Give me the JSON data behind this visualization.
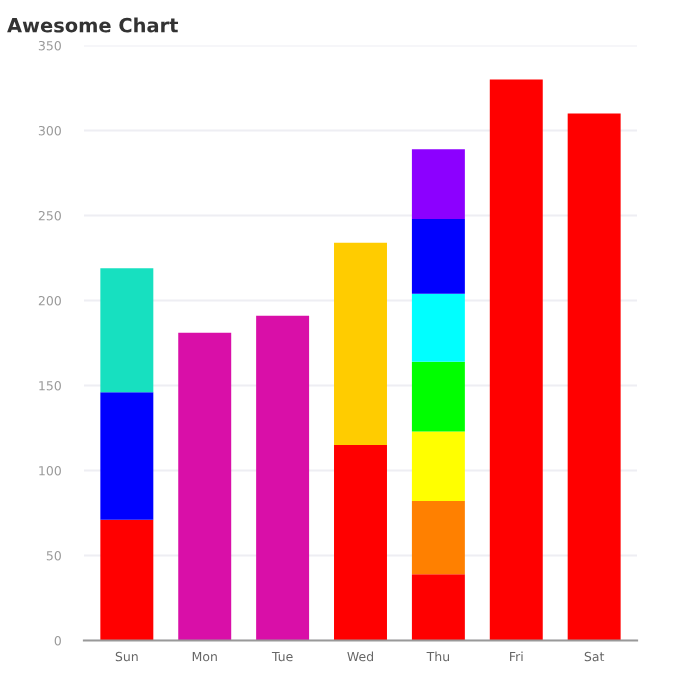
{
  "chart_data": {
    "type": "bar",
    "title": "Awesome Chart",
    "stacked": true,
    "grid": "y",
    "categories": [
      "Sun",
      "Mon",
      "Tue",
      "Wed",
      "Thu",
      "Fri",
      "Sat"
    ],
    "ylim": [
      0,
      350
    ],
    "yticks": [
      0,
      50,
      100,
      150,
      200,
      250,
      300,
      350
    ],
    "series": [
      {
        "values": [
          71,
          181,
          191,
          115,
          39,
          330,
          310
        ],
        "colors": [
          "#ff0000",
          "#d90fa8",
          "#d90fa8",
          "#ff0000",
          "#ff0000",
          "#ff0000",
          "#ff0000"
        ]
      },
      {
        "values": [
          75,
          null,
          null,
          119,
          43,
          null,
          null
        ],
        "colors": [
          "#0000ff",
          null,
          null,
          "#ffcc00",
          "#ff8000",
          null,
          null
        ]
      },
      {
        "values": [
          73,
          null,
          null,
          null,
          41,
          null,
          null
        ],
        "colors": [
          "#17e0c0",
          null,
          null,
          null,
          "#ffff00",
          null,
          null
        ]
      },
      {
        "values": [
          null,
          null,
          null,
          null,
          41,
          null,
          null
        ],
        "colors": [
          null,
          null,
          null,
          null,
          "#00ff00",
          null,
          null
        ]
      },
      {
        "values": [
          null,
          null,
          null,
          null,
          40,
          null,
          null
        ],
        "colors": [
          null,
          null,
          null,
          null,
          "#00ffff",
          null,
          null
        ]
      },
      {
        "values": [
          null,
          null,
          null,
          null,
          44,
          null,
          null
        ],
        "colors": [
          null,
          null,
          null,
          null,
          "#0000ff",
          null,
          null
        ]
      },
      {
        "values": [
          null,
          null,
          null,
          null,
          41,
          null,
          null
        ],
        "colors": [
          null,
          null,
          null,
          null,
          "#8c00ff",
          null,
          null
        ]
      }
    ]
  }
}
